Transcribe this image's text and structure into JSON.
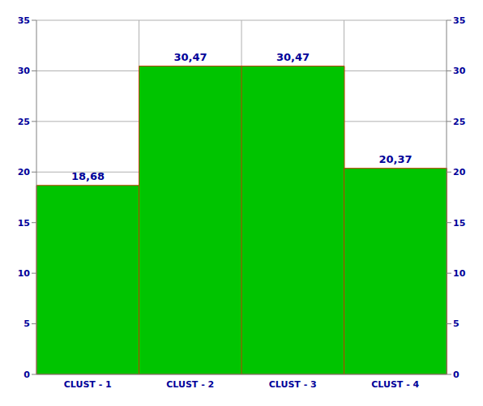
{
  "chart_data": {
    "type": "bar",
    "categories": [
      "CLUST - 1",
      "CLUST - 2",
      "CLUST - 3",
      "CLUST - 4"
    ],
    "values": [
      18.68,
      30.47,
      30.47,
      20.37
    ],
    "value_labels": [
      "18,68",
      "30,47",
      "30,47",
      "20,37"
    ],
    "color": "#00c400",
    "ylim": [
      0,
      35
    ],
    "yticks": [
      0,
      5,
      10,
      15,
      20,
      25,
      30,
      35
    ],
    "grid": true,
    "data_labels": true
  }
}
